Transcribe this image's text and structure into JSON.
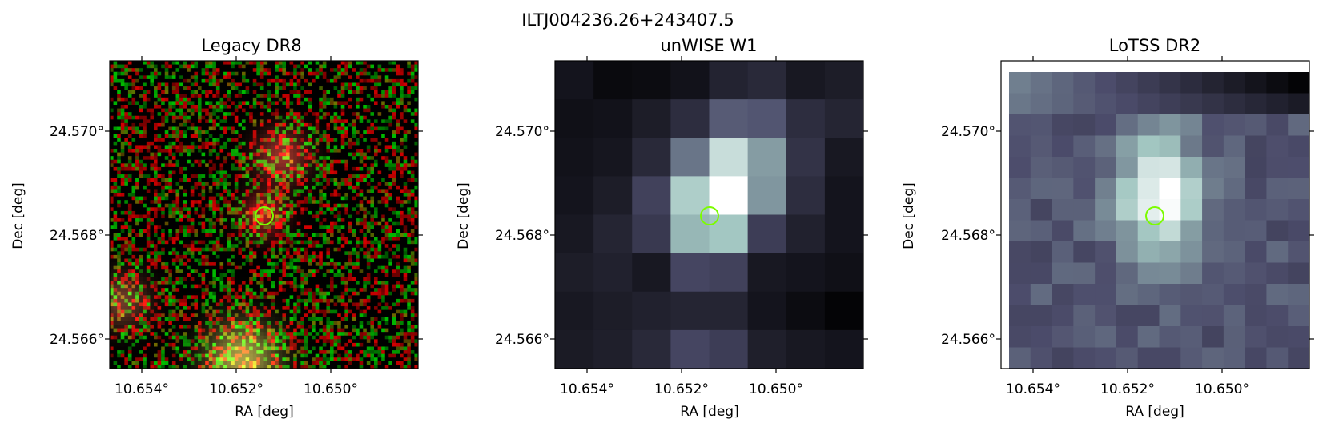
{
  "figure": {
    "suptitle": "ILTJ004236.26+243407.5",
    "marker_color": "#7CFC00"
  },
  "panels": [
    {
      "title": "Legacy DR8",
      "xlabel": "RA [deg]",
      "ylabel": "Dec [deg]",
      "xticks": [
        "10.654°",
        "10.652°",
        "10.650°"
      ],
      "yticks": [
        "24.570°",
        "24.568°",
        "24.566°"
      ],
      "style": "rgb-noise"
    },
    {
      "title": "unWISE W1",
      "xlabel": "RA [deg]",
      "ylabel": "Dec [deg]",
      "xticks": [
        "10.654°",
        "10.652°",
        "10.650°"
      ],
      "yticks": [
        "24.570°",
        "24.568°",
        "24.566°"
      ],
      "style": "bone-coarse"
    },
    {
      "title": "LoTSS DR2",
      "xlabel": "RA [deg]",
      "ylabel": "Dec [deg]",
      "xticks": [
        "10.654°",
        "10.652°",
        "10.650°"
      ],
      "yticks": [
        "24.570°",
        "24.568°",
        "24.566°"
      ],
      "style": "bone-fine"
    }
  ]
}
